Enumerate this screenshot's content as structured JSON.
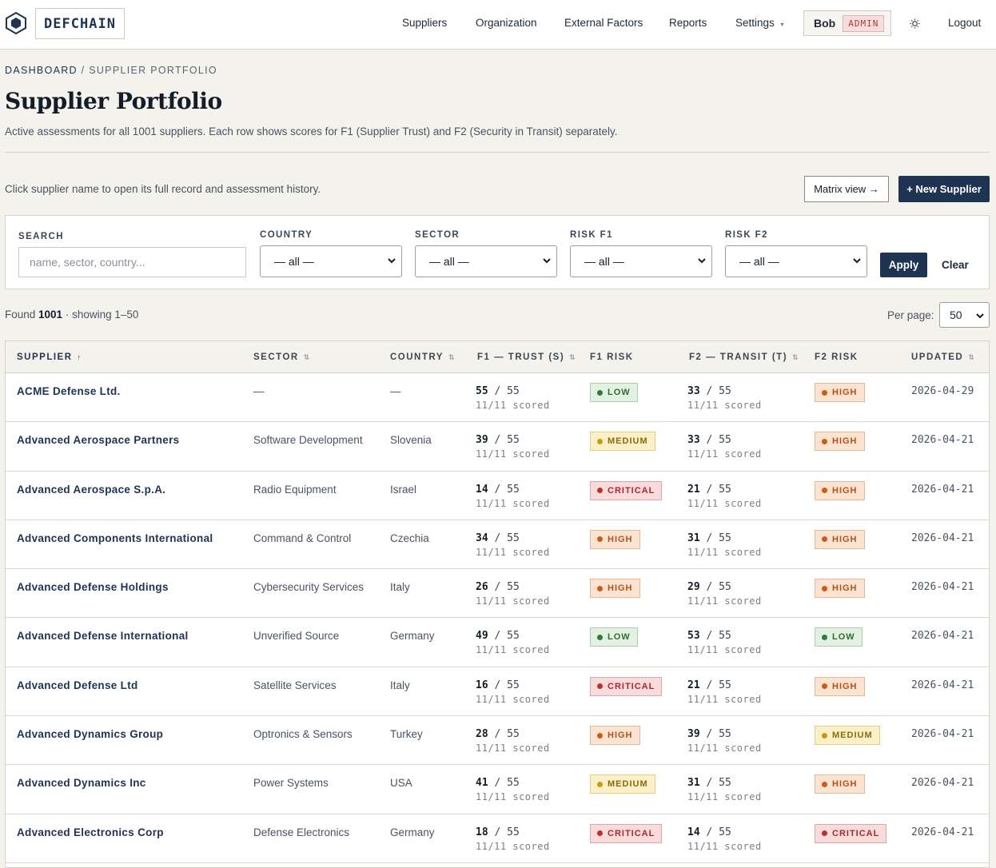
{
  "header": {
    "brand": "DEFCHAIN",
    "nav": [
      "Suppliers",
      "Organization",
      "External Factors",
      "Reports",
      "Settings"
    ],
    "settings_caret": "▾",
    "user": "Bob",
    "role": "ADMIN",
    "logout": "Logout"
  },
  "breadcrumb": {
    "root": "DASHBOARD",
    "sep": " / ",
    "current": "SUPPLIER PORTFOLIO"
  },
  "page": {
    "title": "Supplier Portfolio",
    "subtitle": "Active assessments for all 1001 suppliers. Each row shows scores for F1 (Supplier Trust) and F2 (Security in Transit) separately.",
    "hint": "Click supplier name to open its full record and assessment history.",
    "matrix_button": "Matrix view →",
    "new_button": "+ New Supplier"
  },
  "filters": {
    "search_label": "SEARCH",
    "search_placeholder": "name, sector, country...",
    "country_label": "COUNTRY",
    "sector_label": "SECTOR",
    "risk_f1_label": "RISK F1",
    "risk_f2_label": "RISK F2",
    "all_option": "— all —",
    "apply": "Apply",
    "clear": "Clear"
  },
  "results": {
    "found_prefix": "Found ",
    "count": "1001",
    "showing": " · showing 1–50",
    "per_page_label": "Per page:",
    "per_page": "50"
  },
  "table": {
    "headers": {
      "supplier": "SUPPLIER",
      "sector": "SECTOR",
      "country": "COUNTRY",
      "f1": "F1 — TRUST (S)",
      "f1_risk": "F1 RISK",
      "f2": "F2 — TRANSIT (T)",
      "f2_risk": "F2 RISK",
      "updated": "UPDATED"
    },
    "sort_active": "↑",
    "sort_idle": "⇅",
    "max_score": "55",
    "rows": [
      {
        "name": "ACME Defense Ltd.",
        "sector": "—",
        "country": "—",
        "f1": "55",
        "f1_scored": "11/11 scored",
        "f1_risk": "LOW",
        "f2": "33",
        "f2_scored": "11/11 scored",
        "f2_risk": "HIGH",
        "updated": "2026-04-29"
      },
      {
        "name": "Advanced Aerospace Partners",
        "sector": "Software Development",
        "country": "Slovenia",
        "f1": "39",
        "f1_scored": "11/11 scored",
        "f1_risk": "MEDIUM",
        "f2": "33",
        "f2_scored": "11/11 scored",
        "f2_risk": "HIGH",
        "updated": "2026-04-21"
      },
      {
        "name": "Advanced Aerospace S.p.A.",
        "sector": "Radio Equipment",
        "country": "Israel",
        "f1": "14",
        "f1_scored": "11/11 scored",
        "f1_risk": "CRITICAL",
        "f2": "21",
        "f2_scored": "11/11 scored",
        "f2_risk": "HIGH",
        "updated": "2026-04-21"
      },
      {
        "name": "Advanced Components International",
        "sector": "Command & Control",
        "country": "Czechia",
        "f1": "34",
        "f1_scored": "11/11 scored",
        "f1_risk": "HIGH",
        "f2": "31",
        "f2_scored": "11/11 scored",
        "f2_risk": "HIGH",
        "updated": "2026-04-21"
      },
      {
        "name": "Advanced Defense Holdings",
        "sector": "Cybersecurity Services",
        "country": "Italy",
        "f1": "26",
        "f1_scored": "11/11 scored",
        "f1_risk": "HIGH",
        "f2": "29",
        "f2_scored": "11/11 scored",
        "f2_risk": "HIGH",
        "updated": "2026-04-21"
      },
      {
        "name": "Advanced Defense International",
        "sector": "Unverified Source",
        "country": "Germany",
        "f1": "49",
        "f1_scored": "11/11 scored",
        "f1_risk": "LOW",
        "f2": "53",
        "f2_scored": "11/11 scored",
        "f2_risk": "LOW",
        "updated": "2026-04-21"
      },
      {
        "name": "Advanced Defense Ltd",
        "sector": "Satellite Services",
        "country": "Italy",
        "f1": "16",
        "f1_scored": "11/11 scored",
        "f1_risk": "CRITICAL",
        "f2": "21",
        "f2_scored": "11/11 scored",
        "f2_risk": "HIGH",
        "updated": "2026-04-21"
      },
      {
        "name": "Advanced Dynamics Group",
        "sector": "Optronics & Sensors",
        "country": "Turkey",
        "f1": "28",
        "f1_scored": "11/11 scored",
        "f1_risk": "HIGH",
        "f2": "39",
        "f2_scored": "11/11 scored",
        "f2_risk": "MEDIUM",
        "updated": "2026-04-21"
      },
      {
        "name": "Advanced Dynamics Inc",
        "sector": "Power Systems",
        "country": "USA",
        "f1": "41",
        "f1_scored": "11/11 scored",
        "f1_risk": "MEDIUM",
        "f2": "31",
        "f2_scored": "11/11 scored",
        "f2_risk": "HIGH",
        "updated": "2026-04-21"
      },
      {
        "name": "Advanced Electronics Corp",
        "sector": "Defense Electronics",
        "country": "Germany",
        "f1": "18",
        "f1_scored": "11/11 scored",
        "f1_risk": "CRITICAL",
        "f2": "14",
        "f2_scored": "11/11 scored",
        "f2_risk": "CRITICAL",
        "updated": "2026-04-21"
      }
    ]
  },
  "colors": {
    "primary": "#1f3352",
    "background": "#f4f2ed",
    "low": "#2f7d35",
    "medium": "#c89a12",
    "high": "#cc5a1a",
    "critical": "#bf2d30"
  },
  "icons": {
    "logo": "hexagon-logo-icon",
    "theme": "sun-icon",
    "select": "chevron-down-icon"
  }
}
